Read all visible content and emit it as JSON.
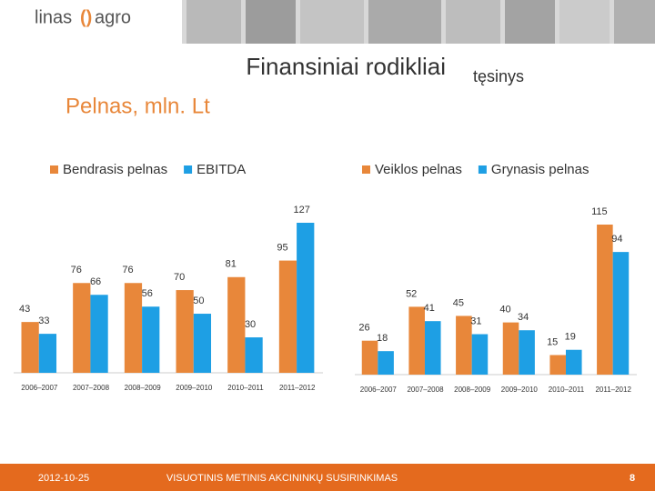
{
  "logo": {
    "left": "linas",
    "right": "agro"
  },
  "title": "Finansiniai rodikliai",
  "continuation": "tęsinys",
  "subtitle": "Pelnas, mln. Lt",
  "chart_data": [
    {
      "type": "bar",
      "categories": [
        "2006–2007",
        "2007–2008",
        "2008–2009",
        "2009–2010",
        "2010–2011",
        "2011–2012"
      ],
      "series": [
        {
          "name": "Bendrasis pelnas",
          "color": "#e8873a",
          "values": [
            43,
            76,
            76,
            70,
            81,
            95
          ]
        },
        {
          "name": "EBITDA",
          "color": "#1e9fe4",
          "values": [
            33,
            66,
            56,
            50,
            30,
            127
          ]
        }
      ]
    },
    {
      "type": "bar",
      "categories": [
        "2006–2007",
        "2007–2008",
        "2008–2009",
        "2009–2010",
        "2010–2011",
        "2011–2012"
      ],
      "series": [
        {
          "name": "Veiklos pelnas",
          "color": "#e8873a",
          "values": [
            26,
            52,
            45,
            40,
            15,
            115
          ]
        },
        {
          "name": "Grynasis pelnas",
          "color": "#1e9fe4",
          "values": [
            18,
            41,
            31,
            34,
            19,
            94
          ]
        }
      ]
    }
  ],
  "footer": {
    "date": "2012-10-25",
    "event": "VISUOTINIS METINIS AKCININKŲ SUSIRINKIMAS",
    "page": "8"
  }
}
